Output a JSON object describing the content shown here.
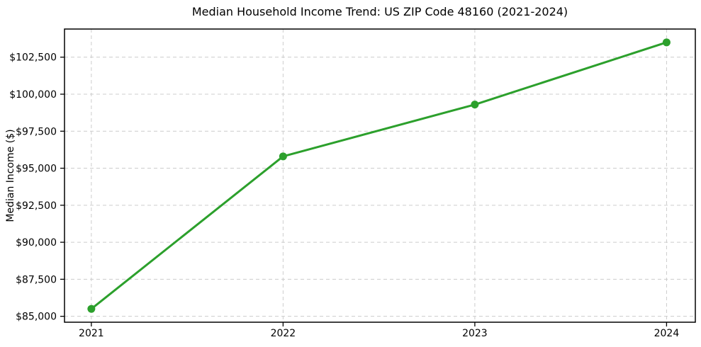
{
  "chart_data": {
    "type": "line",
    "title": "Median Household Income Trend: US ZIP Code 48160 (2021-2024)",
    "xlabel": "",
    "ylabel": "Median Income ($)",
    "x": [
      2021,
      2022,
      2023,
      2024
    ],
    "series": [
      {
        "name": "Median Household Income",
        "values": [
          85500,
          95800,
          99300,
          103500
        ]
      }
    ],
    "xtick_labels": [
      "2021",
      "2022",
      "2023",
      "2024"
    ],
    "ytick_values": [
      85000,
      87500,
      90000,
      92500,
      95000,
      97500,
      100000,
      102500
    ],
    "ytick_labels": [
      "$85,000",
      "$87,500",
      "$90,000",
      "$92,500",
      "$95,000",
      "$97,500",
      "$100,000",
      "$102,500"
    ],
    "xlim": [
      2020.86,
      2024.15
    ],
    "ylim": [
      84600,
      104400
    ],
    "grid": true,
    "grid_style": "dashed",
    "legend": "none",
    "line_color": "#2ca02c",
    "marker": "circle",
    "grid_color": "#cccccc",
    "axis_color": "#000000",
    "text_color": "#000000",
    "background_color": "#ffffff"
  }
}
